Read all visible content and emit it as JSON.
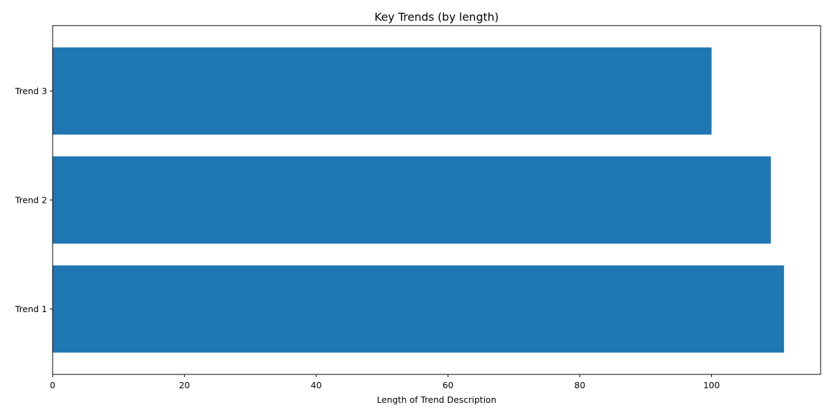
{
  "chart_data": {
    "type": "bar",
    "orientation": "horizontal",
    "title": "Key Trends (by length)",
    "xlabel": "Length of Trend Description",
    "ylabel": "",
    "categories": [
      "Trend 1",
      "Trend 2",
      "Trend 3"
    ],
    "values": [
      111,
      109,
      100
    ],
    "xlim": [
      0,
      116.55
    ],
    "xticks": [
      0,
      20,
      40,
      60,
      80,
      100
    ],
    "grid": false,
    "bar_color": "#1f77b4"
  }
}
